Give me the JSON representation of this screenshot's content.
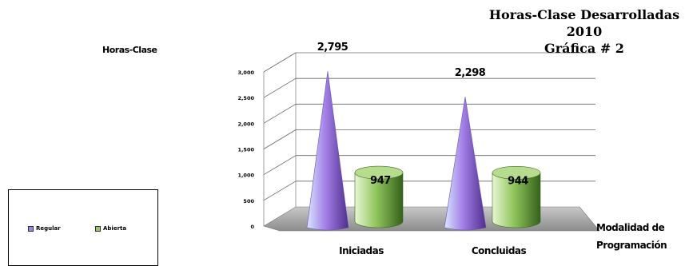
{
  "chart_data": {
    "type": "bar",
    "title_lines": [
      "Horas-Clase Desarrolladas",
      "2010",
      "Gráfica # 2"
    ],
    "ylabel": "Horas-Clase",
    "xlabel_lines": [
      "Modalidad de",
      "Programación"
    ],
    "categories": [
      "Iniciadas",
      "Concluidas"
    ],
    "ylim": [
      0,
      3000
    ],
    "yticks": [
      0,
      500,
      1000,
      1500,
      2000,
      2500,
      3000
    ],
    "ytick_labels": [
      "0",
      "500",
      "1,000",
      "1,500",
      "2,000",
      "2,500",
      "3,000"
    ],
    "grid": true,
    "legend_position": "bottom-left",
    "series": [
      {
        "name": "Regular",
        "shape": "cone",
        "values": [
          2795,
          2298
        ],
        "value_labels": [
          "2,795",
          "2,298"
        ],
        "colors": [
          "#c9d8ff",
          "#9a7be0",
          "#5a3b95"
        ]
      },
      {
        "name": "Abierta",
        "shape": "cylinder",
        "values": [
          947,
          944
        ],
        "value_labels": [
          "947",
          "944"
        ],
        "colors": [
          "#e3f3c6",
          "#8cc35a",
          "#3f6b20"
        ]
      }
    ]
  }
}
